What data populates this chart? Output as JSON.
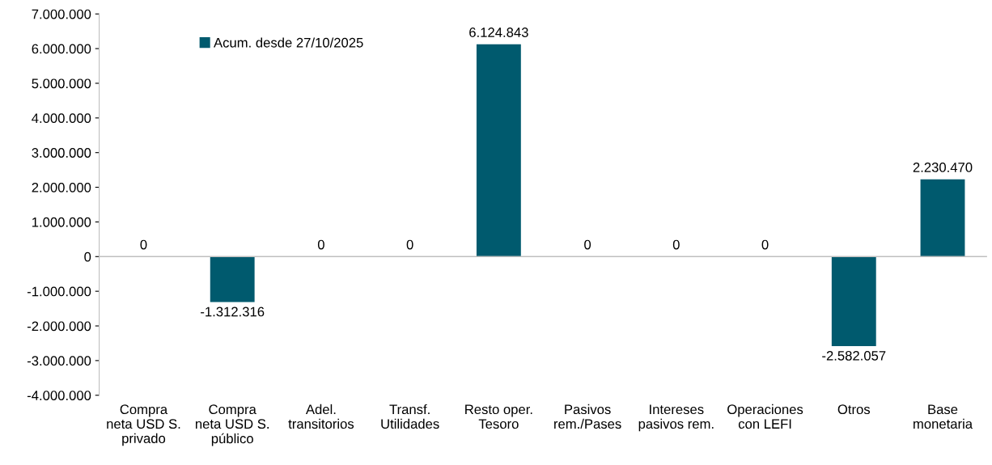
{
  "chart_data": {
    "type": "bar",
    "categories": [
      "Compra\nneta USD S.\nprivado",
      "Compra\nneta USD S.\npúblico",
      "Adel.\ntransitorios",
      "Transf.\nUtilidades",
      "Resto oper.\nTesoro",
      "Pasivos\nrem./Pases",
      "Intereses\npasivos rem.",
      "Operaciones\ncon LEFI",
      "Otros",
      "Base\nmonetaria"
    ],
    "series": [
      {
        "name": "Acum. desde 27/10/2025",
        "color": "#005a6e",
        "values": [
          0,
          -1312316,
          0,
          0,
          6124843,
          0,
          0,
          0,
          -2582057,
          2230470
        ],
        "value_labels": [
          "0",
          "-1.312.316",
          "0",
          "0",
          "6.124.843",
          "0",
          "0",
          "0",
          "-2.582.057",
          "2.230.470"
        ]
      }
    ],
    "ylim": [
      -4000000,
      7000000
    ],
    "yticks": [
      {
        "value": -4000000,
        "label": "-4.000.000"
      },
      {
        "value": -3000000,
        "label": "-3.000.000"
      },
      {
        "value": -2000000,
        "label": "-2.000.000"
      },
      {
        "value": -1000000,
        "label": "-1.000.000"
      },
      0,
      {
        "value": 1000000,
        "label": "1.000.000"
      },
      {
        "value": 2000000,
        "label": "2.000.000"
      },
      {
        "value": 3000000,
        "label": "3.000.000"
      },
      {
        "value": 4000000,
        "label": "4.000.000"
      },
      {
        "value": 5000000,
        "label": "5.000.000"
      },
      {
        "value": 6000000,
        "label": "6.000.000"
      },
      {
        "value": 7000000,
        "label": "7.000.000"
      }
    ],
    "legend": "top left"
  }
}
